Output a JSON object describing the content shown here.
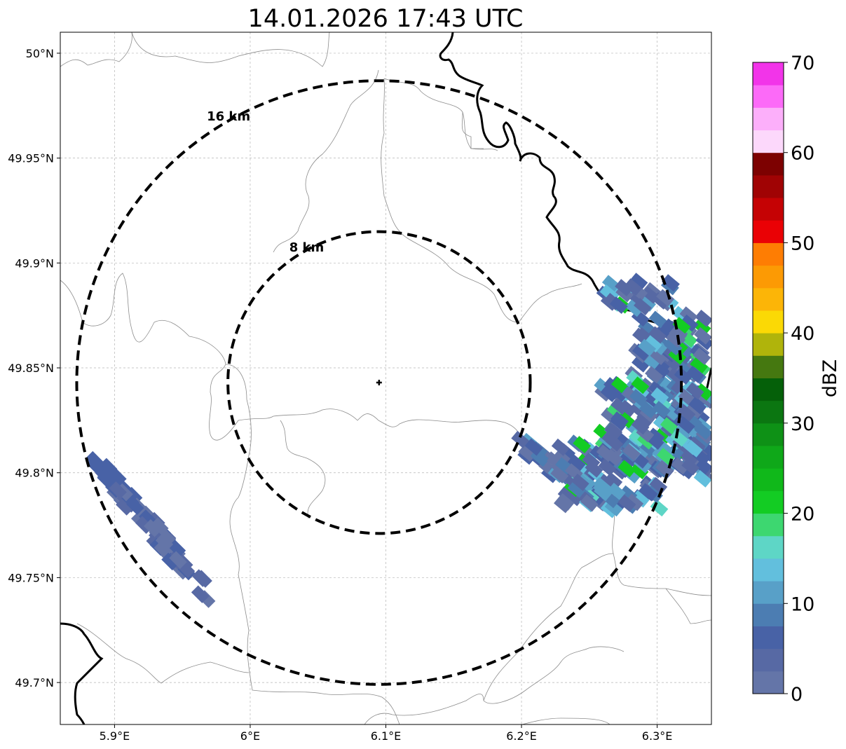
{
  "title": "14.01.2026 17:43 UTC",
  "map": {
    "lon_range": [
      5.86,
      6.34
    ],
    "lat_range": [
      49.68,
      50.01
    ],
    "lon_ticks": [
      {
        "value": 5.9,
        "label": "5.9°E"
      },
      {
        "value": 6.0,
        "label": "6°E"
      },
      {
        "value": 6.1,
        "label": "6.1°E"
      },
      {
        "value": 6.2,
        "label": "6.2°E"
      },
      {
        "value": 6.3,
        "label": "6.3°E"
      }
    ],
    "lat_ticks": [
      {
        "value": 49.7,
        "label": "49.7°N"
      },
      {
        "value": 49.75,
        "label": "49.75°N"
      },
      {
        "value": 49.8,
        "label": "49.8°N"
      },
      {
        "value": 49.85,
        "label": "49.85°N"
      },
      {
        "value": 49.9,
        "label": "49.9°N"
      },
      {
        "value": 49.95,
        "label": "49.95°N"
      },
      {
        "value": 50.0,
        "label": "50°N"
      }
    ],
    "grid": true,
    "radar_site": {
      "lon": 6.095,
      "lat": 49.843
    },
    "range_rings": [
      {
        "radius_km": 8,
        "label": "8 km"
      },
      {
        "radius_km": 16,
        "label": "16 km"
      }
    ],
    "echo_clusters": [
      {
        "name": "southwest band",
        "dbz_range": [
          0,
          8
        ]
      },
      {
        "name": "east cluster",
        "dbz_range": [
          0,
          28
        ]
      }
    ]
  },
  "colorbar": {
    "label": "dBZ",
    "ticks": [
      {
        "value": 0,
        "label": "0"
      },
      {
        "value": 10,
        "label": "10"
      },
      {
        "value": 20,
        "label": "20"
      },
      {
        "value": 30,
        "label": "30"
      },
      {
        "value": 40,
        "label": "40"
      },
      {
        "value": 50,
        "label": "50"
      },
      {
        "value": 60,
        "label": "60"
      },
      {
        "value": 70,
        "label": "70"
      }
    ],
    "range": [
      0,
      70
    ],
    "step": 2.5,
    "colors": [
      "#6475a8",
      "#5769a4",
      "#4862a6",
      "#4c7db2",
      "#58a0c8",
      "#62bfdd",
      "#5ed6c6",
      "#3dd770",
      "#13cc23",
      "#10b81a",
      "#0fa819",
      "#0e9116",
      "#0b7611",
      "#056009",
      "#457810",
      "#b0b40b",
      "#fbd905",
      "#fcb507",
      "#fc9a04",
      "#fe7d03",
      "#ea0105",
      "#c50204",
      "#a00304",
      "#7d0101",
      "#fcd8fb",
      "#fcaffa",
      "#fc6af8",
      "#f234e9"
    ]
  }
}
